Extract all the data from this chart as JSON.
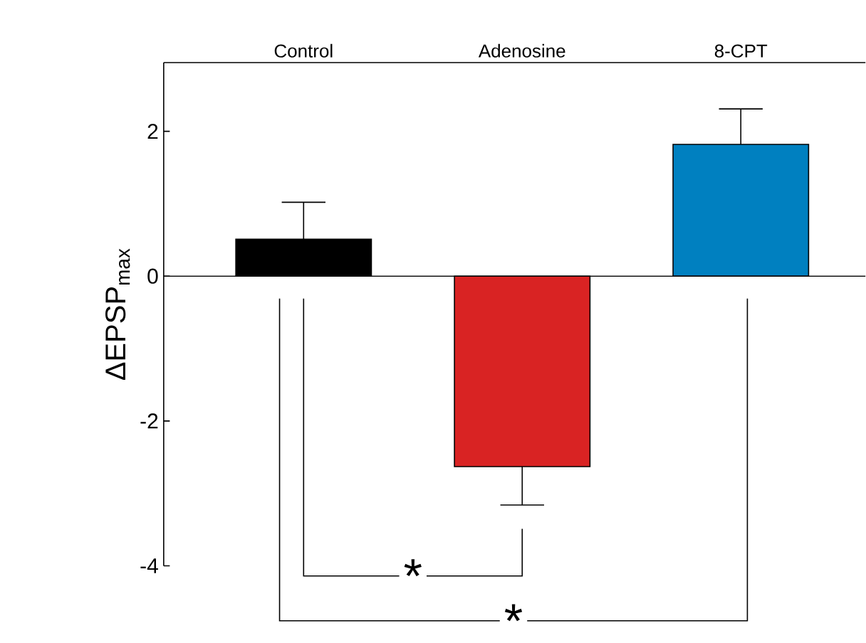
{
  "chart_data": {
    "type": "bar",
    "ylabel": "ΔEPSP$_{max}$",
    "categories": [
      "Control",
      "Adenosine",
      "8-CPT"
    ],
    "values": [
      0.51,
      -2.63,
      1.82
    ],
    "colors": [
      "#000000",
      "#d92323",
      "#0080c0"
    ],
    "errors": [
      [
        0.51,
        1.02
      ],
      [
        -3.16,
        -2.63
      ],
      [
        1.82,
        2.31
      ]
    ],
    "ylim": [
      -4,
      2.95
    ],
    "yticks": [
      -4,
      -2,
      0,
      2
    ],
    "annotations": [
      "*",
      "*"
    ]
  }
}
